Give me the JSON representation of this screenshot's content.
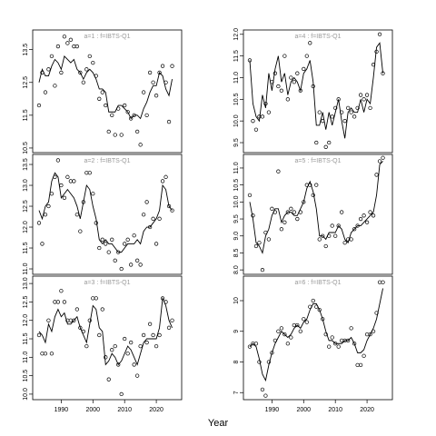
{
  "x_label": "Year",
  "chart_data": [
    {
      "type": "line",
      "title": "a=1 : f=IBTS-Q1",
      "x": [
        1983,
        1984,
        1985,
        1986,
        1987,
        1988,
        1989,
        1990,
        1991,
        1992,
        1993,
        1994,
        1995,
        1996,
        1997,
        1998,
        1999,
        2000,
        2001,
        2002,
        2003,
        2004,
        2005,
        2006,
        2007,
        2008,
        2009,
        2010,
        2011,
        2012,
        2013,
        2014,
        2015,
        2016,
        2017,
        2018,
        2019,
        2020,
        2021,
        2022,
        2023,
        2024,
        2025
      ],
      "xlim": [
        1981,
        2028
      ],
      "ylim": [
        10.36,
        14.1
      ],
      "yticks": [
        10.5,
        11.5,
        12.5,
        13.5
      ],
      "series": [
        {
          "style": "points",
          "color": "#000000",
          "values": [
            11.8,
            12.8,
            12.2,
            12.9,
            13.3,
            12.4,
            13.6,
            12.8,
            13.9,
            13.7,
            13.8,
            13.6,
            13.6,
            12.8,
            12.5,
            12.9,
            13.3,
            13.1,
            12.7,
            12.0,
            12.2,
            11.8,
            11.0,
            11.5,
            10.9,
            11.7,
            10.9,
            11.8,
            11.6,
            11.4,
            11.5,
            11.0,
            10.6,
            12.2,
            11.5,
            12.8,
            12.5,
            12.1,
            12.8,
            13.0,
            12.5,
            11.3,
            13.0
          ]
        },
        {
          "style": "line",
          "color": "#000000",
          "values": [
            12.5,
            12.9,
            12.7,
            12.7,
            13.0,
            13.2,
            13.1,
            12.9,
            13.3,
            13.2,
            13.1,
            13.2,
            12.9,
            12.8,
            12.6,
            12.8,
            12.9,
            12.8,
            12.6,
            12.3,
            12.3,
            12.2,
            11.6,
            11.6,
            11.6,
            11.8,
            11.8,
            11.7,
            11.6,
            11.4,
            11.5,
            11.5,
            11.4,
            11.7,
            11.9,
            12.2,
            12.4,
            12.4,
            12.8,
            12.7,
            12.3,
            12.1,
            12.6
          ]
        }
      ]
    },
    {
      "type": "line",
      "title": "a=2 : f=IBTS-Q1",
      "x": [
        1983,
        1984,
        1985,
        1986,
        1987,
        1988,
        1989,
        1990,
        1991,
        1992,
        1993,
        1994,
        1995,
        1996,
        1997,
        1998,
        1999,
        2000,
        2001,
        2002,
        2003,
        2004,
        2005,
        2006,
        2007,
        2008,
        2009,
        2010,
        2011,
        2012,
        2013,
        2014,
        2015,
        2016,
        2017,
        2018,
        2019,
        2020,
        2021,
        2022,
        2023,
        2024,
        2025
      ],
      "xlim": [
        1981,
        2028
      ],
      "ylim": [
        10.87,
        13.74
      ],
      "yticks": [
        {
          "value": 11,
          "label": "11.0"
        },
        11.5,
        {
          "value": 12,
          "label": "12.0"
        },
        12.5,
        {
          "value": 13,
          "label": "13.0"
        },
        13.5
      ],
      "series": [
        {
          "style": "points",
          "color": "#000000",
          "values": [
            12.1,
            11.6,
            12.3,
            12.5,
            12.8,
            13.2,
            13.6,
            13.0,
            12.7,
            13.2,
            13.1,
            13.1,
            12.3,
            11.9,
            12.6,
            13.3,
            13.3,
            12.8,
            12.1,
            11.5,
            11.7,
            11.6,
            11.4,
            11.7,
            11.2,
            11.4,
            11.0,
            11.6,
            11.7,
            11.1,
            11.8,
            11.2,
            11.1,
            12.3,
            12.6,
            12.0,
            12.2,
            11.6,
            12.2,
            13.1,
            13.2,
            12.5,
            12.4
          ]
        },
        {
          "style": "line",
          "color": "#000000",
          "values": [
            12.4,
            12.2,
            12.5,
            12.6,
            13.1,
            13.3,
            13.2,
            12.7,
            12.8,
            12.9,
            12.8,
            12.7,
            12.5,
            12.2,
            12.6,
            13.0,
            12.9,
            12.5,
            12.2,
            11.7,
            11.6,
            11.7,
            11.6,
            11.6,
            11.5,
            11.4,
            11.4,
            11.5,
            11.6,
            11.6,
            11.6,
            11.7,
            11.6,
            11.9,
            12.0,
            12.0,
            12.1,
            12.2,
            12.4,
            13.0,
            12.9,
            12.5,
            12.4
          ]
        }
      ]
    },
    {
      "type": "line",
      "title": "a=3 : f=IBTS-Q1",
      "x": [
        1983,
        1984,
        1985,
        1986,
        1987,
        1988,
        1989,
        1990,
        1991,
        1992,
        1993,
        1994,
        1995,
        1996,
        1997,
        1998,
        1999,
        2000,
        2001,
        2002,
        2003,
        2004,
        2005,
        2006,
        2007,
        2008,
        2009,
        2010,
        2011,
        2012,
        2013,
        2014,
        2015,
        2016,
        2017,
        2018,
        2019,
        2020,
        2021,
        2022,
        2023,
        2024,
        2025
      ],
      "xlim": [
        1981,
        2028
      ],
      "xticks": [
        1990,
        2000,
        2010,
        2020
      ],
      "ylim": [
        9.85,
        13.2
      ],
      "yticks": [
        {
          "value": 10,
          "label": "10.0"
        },
        10.5,
        {
          "value": 11,
          "label": "11.0"
        },
        11.5,
        {
          "value": 12,
          "label": "12.0"
        },
        12.5,
        {
          "value": 13,
          "label": "13.0"
        }
      ],
      "series": [
        {
          "style": "points",
          "color": "#000000",
          "values": [
            11.6,
            11.1,
            11.1,
            12.0,
            11.1,
            12.5,
            12.5,
            12.8,
            12.5,
            12.0,
            12.0,
            12.0,
            12.3,
            11.8,
            11.7,
            11.3,
            12.0,
            12.6,
            12.6,
            11.6,
            12.3,
            11.0,
            10.4,
            11.2,
            11.3,
            10.8,
            10.0,
            11.5,
            11.1,
            11.4,
            10.8,
            10.5,
            11.3,
            11.6,
            11.4,
            11.9,
            11.6,
            11.3,
            11.6,
            12.6,
            12.5,
            11.8,
            12.0
          ]
        },
        {
          "style": "line",
          "color": "#000000",
          "values": [
            11.7,
            11.6,
            11.4,
            11.9,
            11.7,
            12.1,
            12.3,
            12.1,
            12.2,
            11.9,
            11.9,
            12.0,
            12.1,
            11.8,
            11.6,
            11.4,
            11.9,
            12.4,
            12.3,
            11.8,
            11.7,
            10.8,
            10.9,
            11.1,
            11.0,
            10.8,
            10.9,
            11.1,
            11.3,
            11.2,
            11.0,
            10.8,
            11.1,
            11.4,
            11.5,
            11.5,
            11.5,
            11.5,
            11.8,
            12.6,
            12.4,
            12.0,
            11.8
          ]
        }
      ]
    },
    {
      "type": "line",
      "title": "a=4 : f=IBTS-Q1",
      "x": [
        1983,
        1984,
        1985,
        1986,
        1987,
        1988,
        1989,
        1990,
        1991,
        1992,
        1993,
        1994,
        1995,
        1996,
        1997,
        1998,
        1999,
        2000,
        2001,
        2002,
        2003,
        2004,
        2005,
        2006,
        2007,
        2008,
        2009,
        2010,
        2011,
        2012,
        2013,
        2014,
        2015,
        2016,
        2017,
        2018,
        2019,
        2020,
        2021,
        2022,
        2023,
        2024,
        2025
      ],
      "xlim": [
        1981,
        2028
      ],
      "ylim": [
        9.27,
        12.1
      ],
      "yticks": [
        9.5,
        {
          "value": 10,
          "label": "10.0"
        },
        10.5,
        {
          "value": 11,
          "label": "11.0"
        },
        11.5,
        {
          "value": 12,
          "label": "12.0"
        }
      ],
      "series": [
        {
          "style": "points",
          "color": "#000000",
          "values": [
            11.4,
            10.0,
            9.8,
            10.1,
            10.1,
            10.4,
            10.2,
            10.9,
            11.1,
            10.8,
            10.7,
            11.5,
            10.5,
            11.0,
            10.9,
            11.1,
            10.7,
            11.2,
            11.5,
            11.8,
            10.8,
            9.5,
            10.2,
            10.0,
            9.4,
            9.5,
            10.1,
            10.3,
            10.5,
            10.2,
            10.0,
            10.3,
            10.2,
            10.1,
            10.3,
            10.6,
            10.5,
            10.6,
            10.3,
            11.3,
            11.6,
            12.0,
            11.1
          ]
        },
        {
          "style": "line",
          "color": "#000000",
          "values": [
            11.4,
            10.4,
            10.1,
            10.0,
            10.6,
            10.3,
            11.1,
            10.7,
            11.2,
            11.5,
            10.9,
            11.1,
            10.6,
            10.9,
            11.0,
            10.9,
            10.7,
            11.1,
            11.2,
            11.4,
            10.9,
            9.9,
            9.9,
            10.2,
            9.8,
            10.2,
            9.9,
            10.2,
            10.5,
            10.0,
            9.6,
            10.2,
            10.3,
            10.2,
            10.2,
            10.5,
            10.2,
            10.5,
            10.4,
            11.0,
            11.7,
            11.8,
            11.1
          ]
        }
      ]
    },
    {
      "type": "line",
      "title": "a=5 : f=IBTS-Q1",
      "x": [
        1983,
        1984,
        1985,
        1986,
        1987,
        1988,
        1989,
        1990,
        1991,
        1992,
        1993,
        1994,
        1995,
        1996,
        1997,
        1998,
        1999,
        2000,
        2001,
        2002,
        2003,
        2004,
        2005,
        2006,
        2007,
        2008,
        2009,
        2010,
        2011,
        2012,
        2013,
        2014,
        2015,
        2016,
        2017,
        2018,
        2019,
        2020,
        2021,
        2022,
        2023,
        2024,
        2025
      ],
      "xlim": [
        1981,
        2028
      ],
      "ylim": [
        7.87,
        11.4
      ],
      "yticks": [
        {
          "value": 8,
          "label": "8.0"
        },
        8.5,
        {
          "value": 9,
          "label": "9.0"
        },
        9.5,
        {
          "value": 10,
          "label": "10.0"
        },
        10.5,
        {
          "value": 11,
          "label": "11.0"
        }
      ],
      "series": [
        {
          "style": "points",
          "color": "#000000",
          "values": [
            10.2,
            9.6,
            8.7,
            8.8,
            8.0,
            9.1,
            8.9,
            9.8,
            9.7,
            10.9,
            9.2,
            9.4,
            9.7,
            9.8,
            9.7,
            9.5,
            9.7,
            10.0,
            10.5,
            10.5,
            10.2,
            10.5,
            8.9,
            9.0,
            8.7,
            9.0,
            9.3,
            9.0,
            9.3,
            9.7,
            8.8,
            8.9,
            8.9,
            9.2,
            9.3,
            9.5,
            9.6,
            9.4,
            9.7,
            9.6,
            10.8,
            11.2,
            11.3
          ]
        },
        {
          "style": "line",
          "color": "#000000",
          "values": [
            10.0,
            9.5,
            8.8,
            8.7,
            8.5,
            9.0,
            9.2,
            9.6,
            9.8,
            9.8,
            9.4,
            9.6,
            9.7,
            9.7,
            9.6,
            9.6,
            9.8,
            10.0,
            10.4,
            10.6,
            10.3,
            9.8,
            9.0,
            9.0,
            8.9,
            9.1,
            9.1,
            9.1,
            9.3,
            9.2,
            8.9,
            8.8,
            9.1,
            9.2,
            9.3,
            9.3,
            9.4,
            9.5,
            9.6,
            9.7,
            10.2,
            11.1,
            11.2
          ]
        }
      ]
    },
    {
      "type": "line",
      "title": "a=6 : f=IBTS-Q1",
      "x": [
        1983,
        1984,
        1985,
        1986,
        1987,
        1988,
        1989,
        1990,
        1991,
        1992,
        1993,
        1994,
        1995,
        1996,
        1997,
        1998,
        1999,
        2000,
        2001,
        2002,
        2003,
        2004,
        2005,
        2006,
        2007,
        2008,
        2009,
        2010,
        2011,
        2012,
        2013,
        2014,
        2015,
        2016,
        2017,
        2018,
        2019,
        2020,
        2021,
        2022,
        2023,
        2024,
        2025
      ],
      "xlim": [
        1981,
        2028
      ],
      "xticks": [
        1990,
        2000,
        2010,
        2020
      ],
      "ylim": [
        6.77,
        10.8
      ],
      "yticks": [
        7,
        8,
        9,
        10
      ],
      "series": [
        {
          "style": "points",
          "color": "#000000",
          "values": [
            8.5,
            8.6,
            8.6,
            8.0,
            7.1,
            6.9,
            8.0,
            8.3,
            8.7,
            9.0,
            9.1,
            8.9,
            8.6,
            8.8,
            9.2,
            9.2,
            9.0,
            9.4,
            9.3,
            9.8,
            10.0,
            9.8,
            9.7,
            9.4,
            8.9,
            8.5,
            8.8,
            8.6,
            8.5,
            8.7,
            8.7,
            8.7,
            9.1,
            8.6,
            7.9,
            7.9,
            8.2,
            8.9,
            8.9,
            9.0,
            9.6,
            10.6,
            10.6
          ]
        },
        {
          "style": "line",
          "color": "#000000",
          "values": [
            8.5,
            8.6,
            8.5,
            8.1,
            7.6,
            7.4,
            7.9,
            8.3,
            8.6,
            8.8,
            9.0,
            8.9,
            8.8,
            8.9,
            9.1,
            9.2,
            9.1,
            9.3,
            9.4,
            9.7,
            9.9,
            9.9,
            9.7,
            9.4,
            9.0,
            8.7,
            8.7,
            8.6,
            8.6,
            8.6,
            8.7,
            8.7,
            8.8,
            8.6,
            8.3,
            8.3,
            8.4,
            8.7,
            8.9,
            9.1,
            9.4,
            9.9,
            10.4
          ]
        }
      ]
    }
  ]
}
